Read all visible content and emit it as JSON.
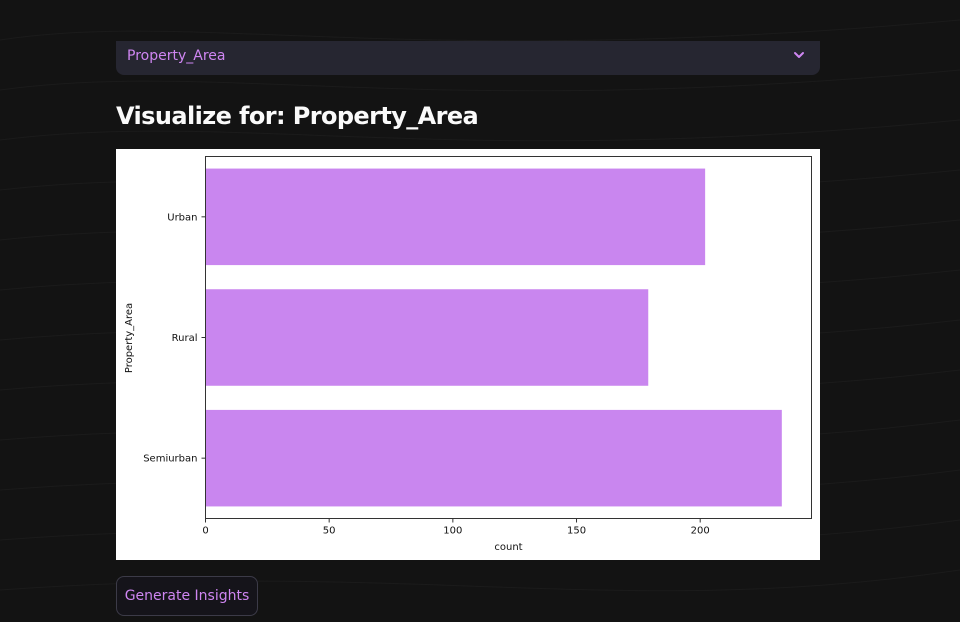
{
  "select": {
    "value": "Property_Area"
  },
  "section": {
    "title": "Visualize for: Property_Area"
  },
  "chart_data": {
    "type": "bar",
    "orientation": "horizontal",
    "categories": [
      "Urban",
      "Rural",
      "Semiurban"
    ],
    "values": [
      202,
      179,
      233
    ],
    "xlabel": "count",
    "ylabel": "Property_Area",
    "xlim": [
      0,
      245
    ],
    "xticks": [
      0,
      50,
      100,
      150,
      200
    ],
    "grid": false,
    "bar_color": "#c986ef"
  },
  "actions": {
    "insights_label": "Generate Insights"
  },
  "colors": {
    "background": "#131313",
    "accent": "#cf86f2",
    "select_background": "#262631"
  }
}
